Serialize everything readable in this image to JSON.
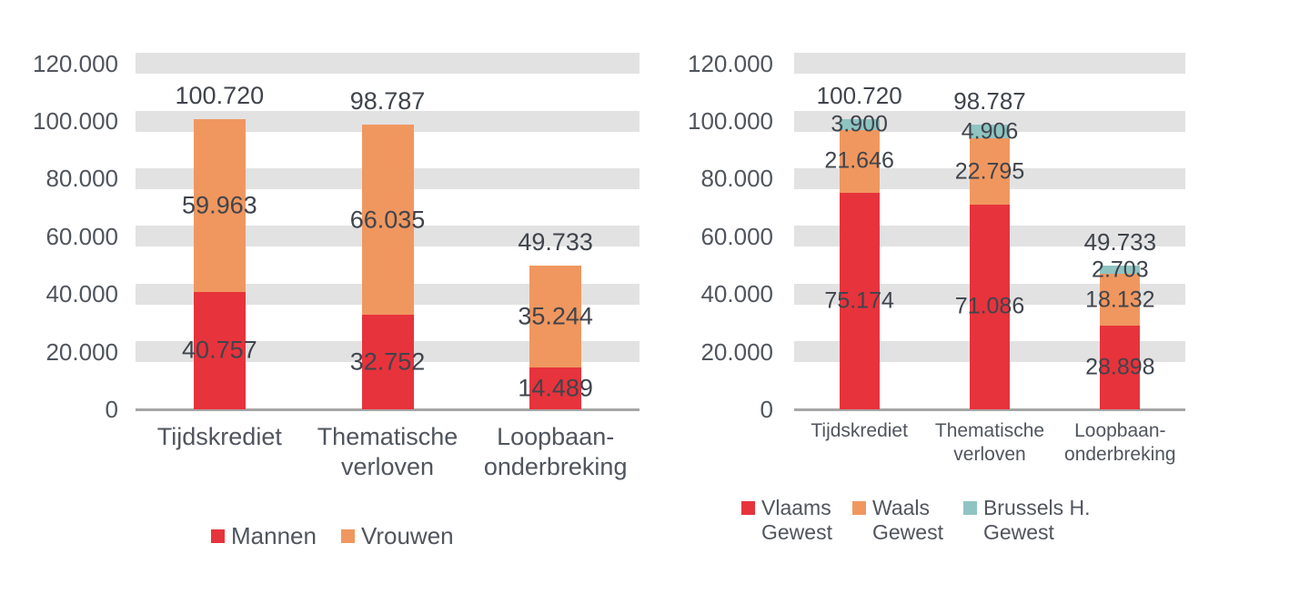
{
  "colors": {
    "background": "#ffffff",
    "grid_band": "#e2e2e2",
    "axis_line": "#a6a6a6",
    "axis_text": "#50555d",
    "data_label_text": "#3f444c",
    "red": "#e7333c",
    "orange": "#f0975f",
    "teal": "#8fc4c2"
  },
  "chart_data": [
    {
      "type": "bar",
      "stacked": true,
      "title": "",
      "xlabel": "",
      "ylabel": "",
      "ylim": [
        0,
        120000
      ],
      "grid": "horizontal-bands",
      "legend_position": "bottom",
      "categories": [
        "Tijdskrediet",
        "Thematische verloven",
        "Loopbaan-onderbreking"
      ],
      "y_ticks": [
        "120.000",
        "100.000",
        "80.000",
        "60.000",
        "40.000",
        "20.000",
        "0"
      ],
      "y_tick_values": [
        120000,
        100000,
        80000,
        60000,
        40000,
        20000,
        0
      ],
      "series": [
        {
          "name": "Mannen",
          "color": "#e7333c",
          "values": [
            40757,
            32752,
            14489
          ],
          "labels": [
            "40.757",
            "32.752",
            "14.489"
          ]
        },
        {
          "name": "Vrouwen",
          "color": "#f0975f",
          "values": [
            59963,
            66035,
            35244
          ],
          "labels": [
            "59.963",
            "66.035",
            "35.244"
          ]
        }
      ],
      "totals": [
        100720,
        98787,
        49733
      ],
      "total_labels": [
        "100.720",
        "98.787",
        "49.733"
      ],
      "legend": [
        "Mannen",
        "Vrouwen"
      ]
    },
    {
      "type": "bar",
      "stacked": true,
      "title": "",
      "xlabel": "",
      "ylabel": "",
      "ylim": [
        0,
        120000
      ],
      "grid": "horizontal-bands",
      "legend_position": "bottom",
      "categories": [
        "Tijdskrediet",
        "Thematische verloven",
        "Loopbaan-onderbreking"
      ],
      "y_ticks": [
        "120.000",
        "100.000",
        "80.000",
        "60.000",
        "40.000",
        "20.000",
        "0"
      ],
      "y_tick_values": [
        120000,
        100000,
        80000,
        60000,
        40000,
        20000,
        0
      ],
      "series": [
        {
          "name": "Vlaams Gewest",
          "color": "#e7333c",
          "values": [
            75174,
            71086,
            28898
          ],
          "labels": [
            "75.174",
            "71.086",
            "28.898"
          ]
        },
        {
          "name": "Waals Gewest",
          "color": "#f0975f",
          "values": [
            21646,
            22795,
            18132
          ],
          "labels": [
            "21.646",
            "22.795",
            "18.132"
          ]
        },
        {
          "name": "Brussels H. Gewest",
          "color": "#8fc4c2",
          "values": [
            3900,
            4906,
            2703
          ],
          "labels": [
            "3.900",
            "4.906",
            "2.703"
          ]
        }
      ],
      "totals": [
        100720,
        98787,
        49733
      ],
      "total_labels": [
        "100.720",
        "98.787",
        "49.733"
      ],
      "legend": [
        "Vlaams\nGewest",
        "Waals\nGewest",
        "Brussels H.\nGewest"
      ]
    }
  ]
}
